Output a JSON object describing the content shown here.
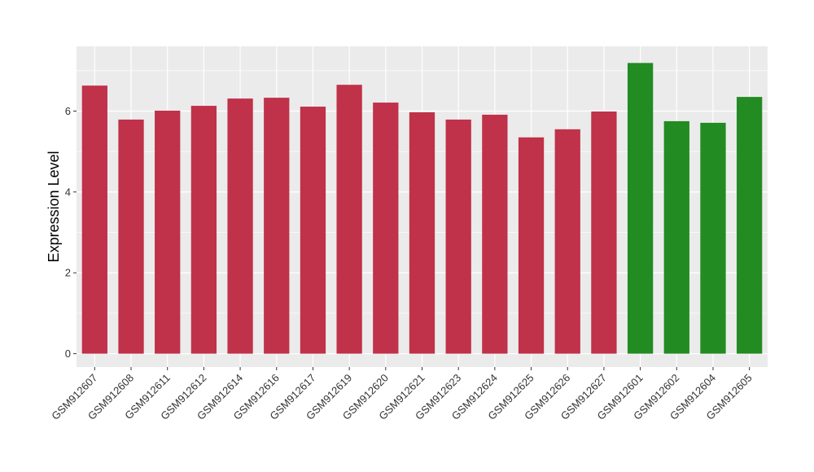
{
  "chart_data": {
    "type": "bar",
    "title": "",
    "xlabel": "",
    "ylabel": "Expression Level",
    "ylim": [
      -0.33,
      7.6
    ],
    "yticks": [
      0,
      2,
      4,
      6
    ],
    "ytick_labels": [
      "0",
      "2",
      "4",
      "6"
    ],
    "grid": true,
    "legend": "none",
    "categories": [
      "GSM912607",
      "GSM912608",
      "GSM912611",
      "GSM912612",
      "GSM912614",
      "GSM912616",
      "GSM912617",
      "GSM912619",
      "GSM912620",
      "GSM912621",
      "GSM912623",
      "GSM912624",
      "GSM912625",
      "GSM912626",
      "GSM912627",
      "GSM912601",
      "GSM912602",
      "GSM912604",
      "GSM912605"
    ],
    "values": [
      6.63,
      5.79,
      6.01,
      6.13,
      6.31,
      6.33,
      6.11,
      6.65,
      6.21,
      5.97,
      5.79,
      5.91,
      5.35,
      5.55,
      5.99,
      7.19,
      5.75,
      5.71,
      6.35
    ],
    "groups": [
      "a",
      "a",
      "a",
      "a",
      "a",
      "a",
      "a",
      "a",
      "a",
      "a",
      "a",
      "a",
      "a",
      "a",
      "a",
      "b",
      "b",
      "b",
      "b"
    ],
    "group_colors": {
      "a": "#C0314A",
      "b": "#228B22"
    },
    "panel_background": "#EBEBEB",
    "gridline_color": "#FFFFFF"
  }
}
